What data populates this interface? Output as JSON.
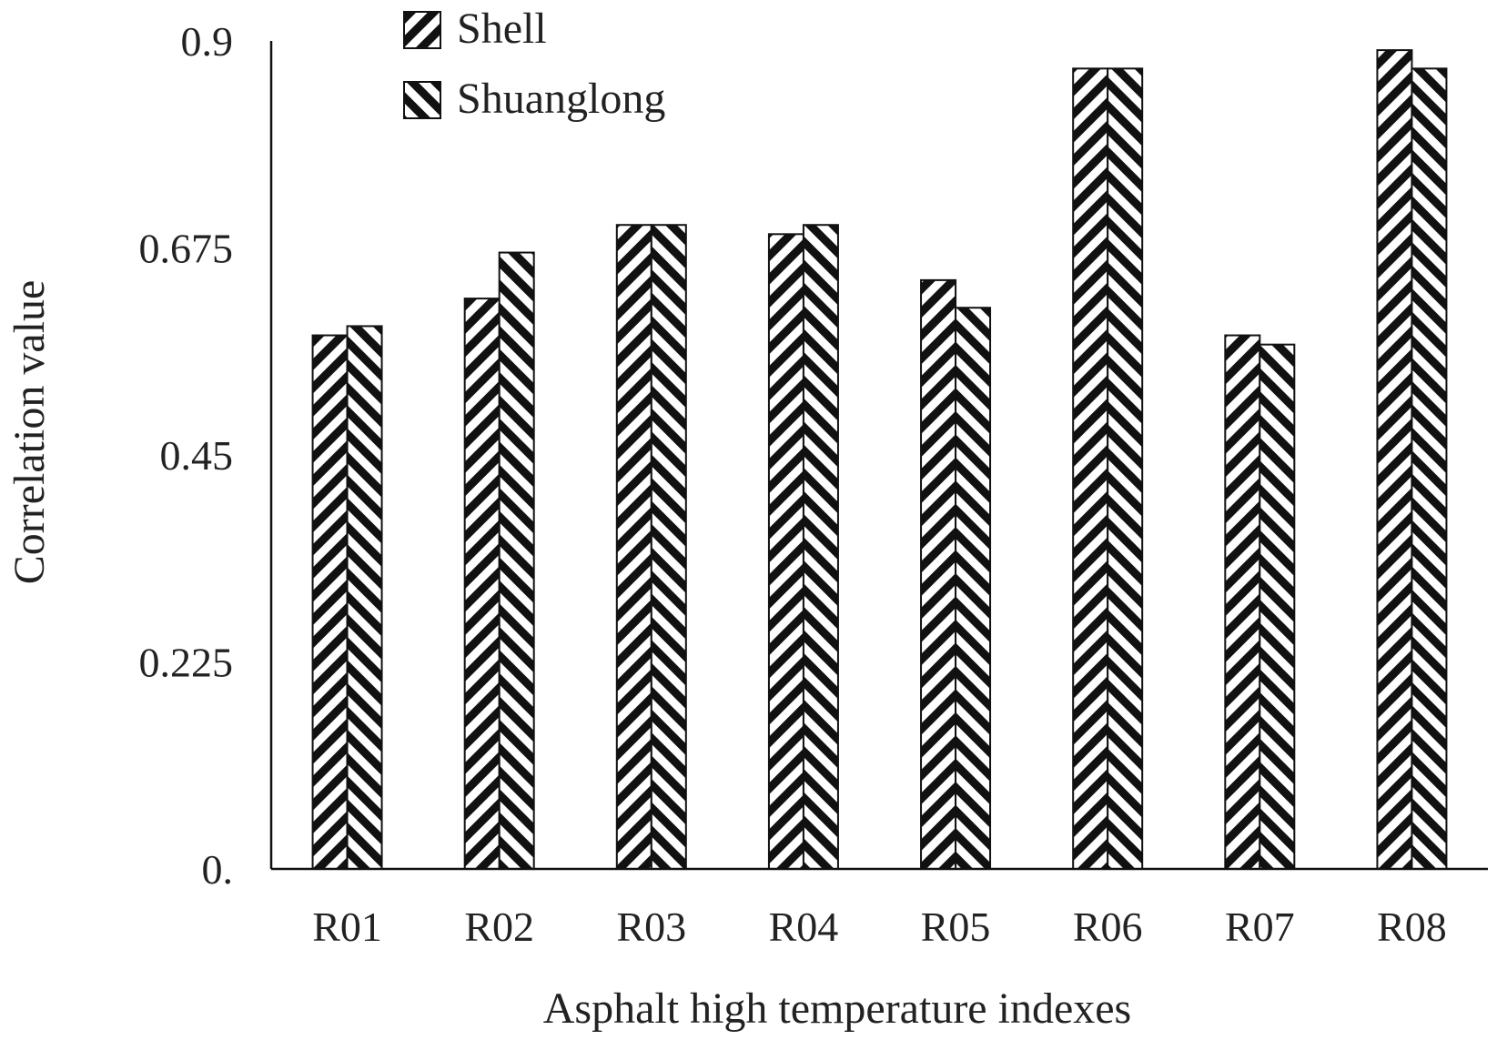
{
  "chart_data": {
    "type": "bar",
    "xlabel": "Asphalt high temperature indexes",
    "ylabel": "Correlation value",
    "categories": [
      "R01",
      "R02",
      "R03",
      "R04",
      "R05",
      "R06",
      "R07",
      "R08"
    ],
    "series": [
      {
        "name": "Shell",
        "values": [
          0.58,
          0.62,
          0.7,
          0.69,
          0.64,
          0.87,
          0.58,
          0.89
        ]
      },
      {
        "name": "Shuanglong",
        "values": [
          0.59,
          0.67,
          0.7,
          0.7,
          0.61,
          0.87,
          0.57,
          0.87
        ]
      }
    ],
    "yticks": [
      "0.",
      "0.225",
      "0.45",
      "0.675",
      "0.9"
    ],
    "ylim": [
      0,
      0.9
    ],
    "grid": false,
    "legend_position": "top-left"
  }
}
